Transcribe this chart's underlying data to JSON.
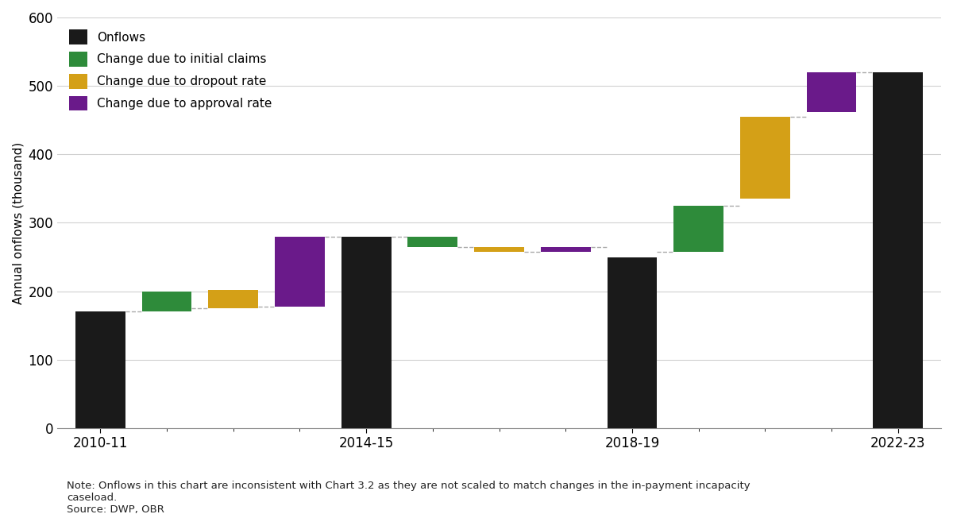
{
  "ylabel": "Annual onflows (thousand)",
  "note": "Note: Onflows in this chart are inconsistent with Chart 3.2 as they are not scaled to match changes in the in-payment incapacity\ncaseload.",
  "source": "Source: DWP, OBR",
  "ylim": [
    0,
    600
  ],
  "yticks": [
    0,
    100,
    200,
    300,
    400,
    500,
    600
  ],
  "colors": {
    "onflows": "#1a1a1a",
    "initial_claims": "#2e8b3a",
    "dropout_rate": "#d4a017",
    "approval_rate": "#6a1a8a"
  },
  "legend_labels": [
    "Onflows",
    "Change due to initial claims",
    "Change due to dropout rate",
    "Change due to approval rate"
  ],
  "bar_width": 0.75,
  "bars": [
    {
      "x": 0,
      "type": "onflows",
      "bottom": 0,
      "top": 170
    },
    {
      "x": 1,
      "type": "initial_claims",
      "bottom": 170,
      "top": 200
    },
    {
      "x": 2,
      "type": "dropout_rate",
      "bottom": 175,
      "top": 202
    },
    {
      "x": 3,
      "type": "approval_rate",
      "bottom": 178,
      "top": 280
    },
    {
      "x": 4,
      "type": "onflows",
      "bottom": 0,
      "top": 280
    },
    {
      "x": 5,
      "type": "initial_claims",
      "bottom": 265,
      "top": 280
    },
    {
      "x": 6,
      "type": "dropout_rate",
      "bottom": 258,
      "top": 265
    },
    {
      "x": 7,
      "type": "approval_rate",
      "bottom": 258,
      "top": 265
    },
    {
      "x": 8,
      "type": "onflows",
      "bottom": 0,
      "top": 250
    },
    {
      "x": 9,
      "type": "initial_claims",
      "bottom": 258,
      "top": 325
    },
    {
      "x": 10,
      "type": "dropout_rate",
      "bottom": 335,
      "top": 455
    },
    {
      "x": 11,
      "type": "approval_rate",
      "bottom": 462,
      "top": 520
    },
    {
      "x": 12,
      "type": "onflows",
      "bottom": 0,
      "top": 520
    }
  ],
  "dashed_lines": [
    {
      "x1": 0,
      "x2": 1,
      "y": 170
    },
    {
      "x1": 1,
      "x2": 2,
      "y": 175
    },
    {
      "x1": 2,
      "x2": 3,
      "y": 178
    },
    {
      "x1": 3,
      "x2": 4,
      "y": 280
    },
    {
      "x1": 4,
      "x2": 5,
      "y": 280
    },
    {
      "x1": 5,
      "x2": 6,
      "y": 265
    },
    {
      "x1": 6,
      "x2": 7,
      "y": 258
    },
    {
      "x1": 7,
      "x2": 8,
      "y": 265
    },
    {
      "x1": 8,
      "x2": 9,
      "y": 258
    },
    {
      "x1": 9,
      "x2": 10,
      "y": 325
    },
    {
      "x1": 10,
      "x2": 11,
      "y": 455
    },
    {
      "x1": 11,
      "x2": 12,
      "y": 520
    }
  ],
  "xtick_positions": [
    0,
    4,
    8,
    12
  ],
  "xtick_labels": [
    "2010-11",
    "2014-15",
    "2018-19",
    "2022-23"
  ],
  "background_color": "#ffffff",
  "grid_color": "#d0d0d0"
}
